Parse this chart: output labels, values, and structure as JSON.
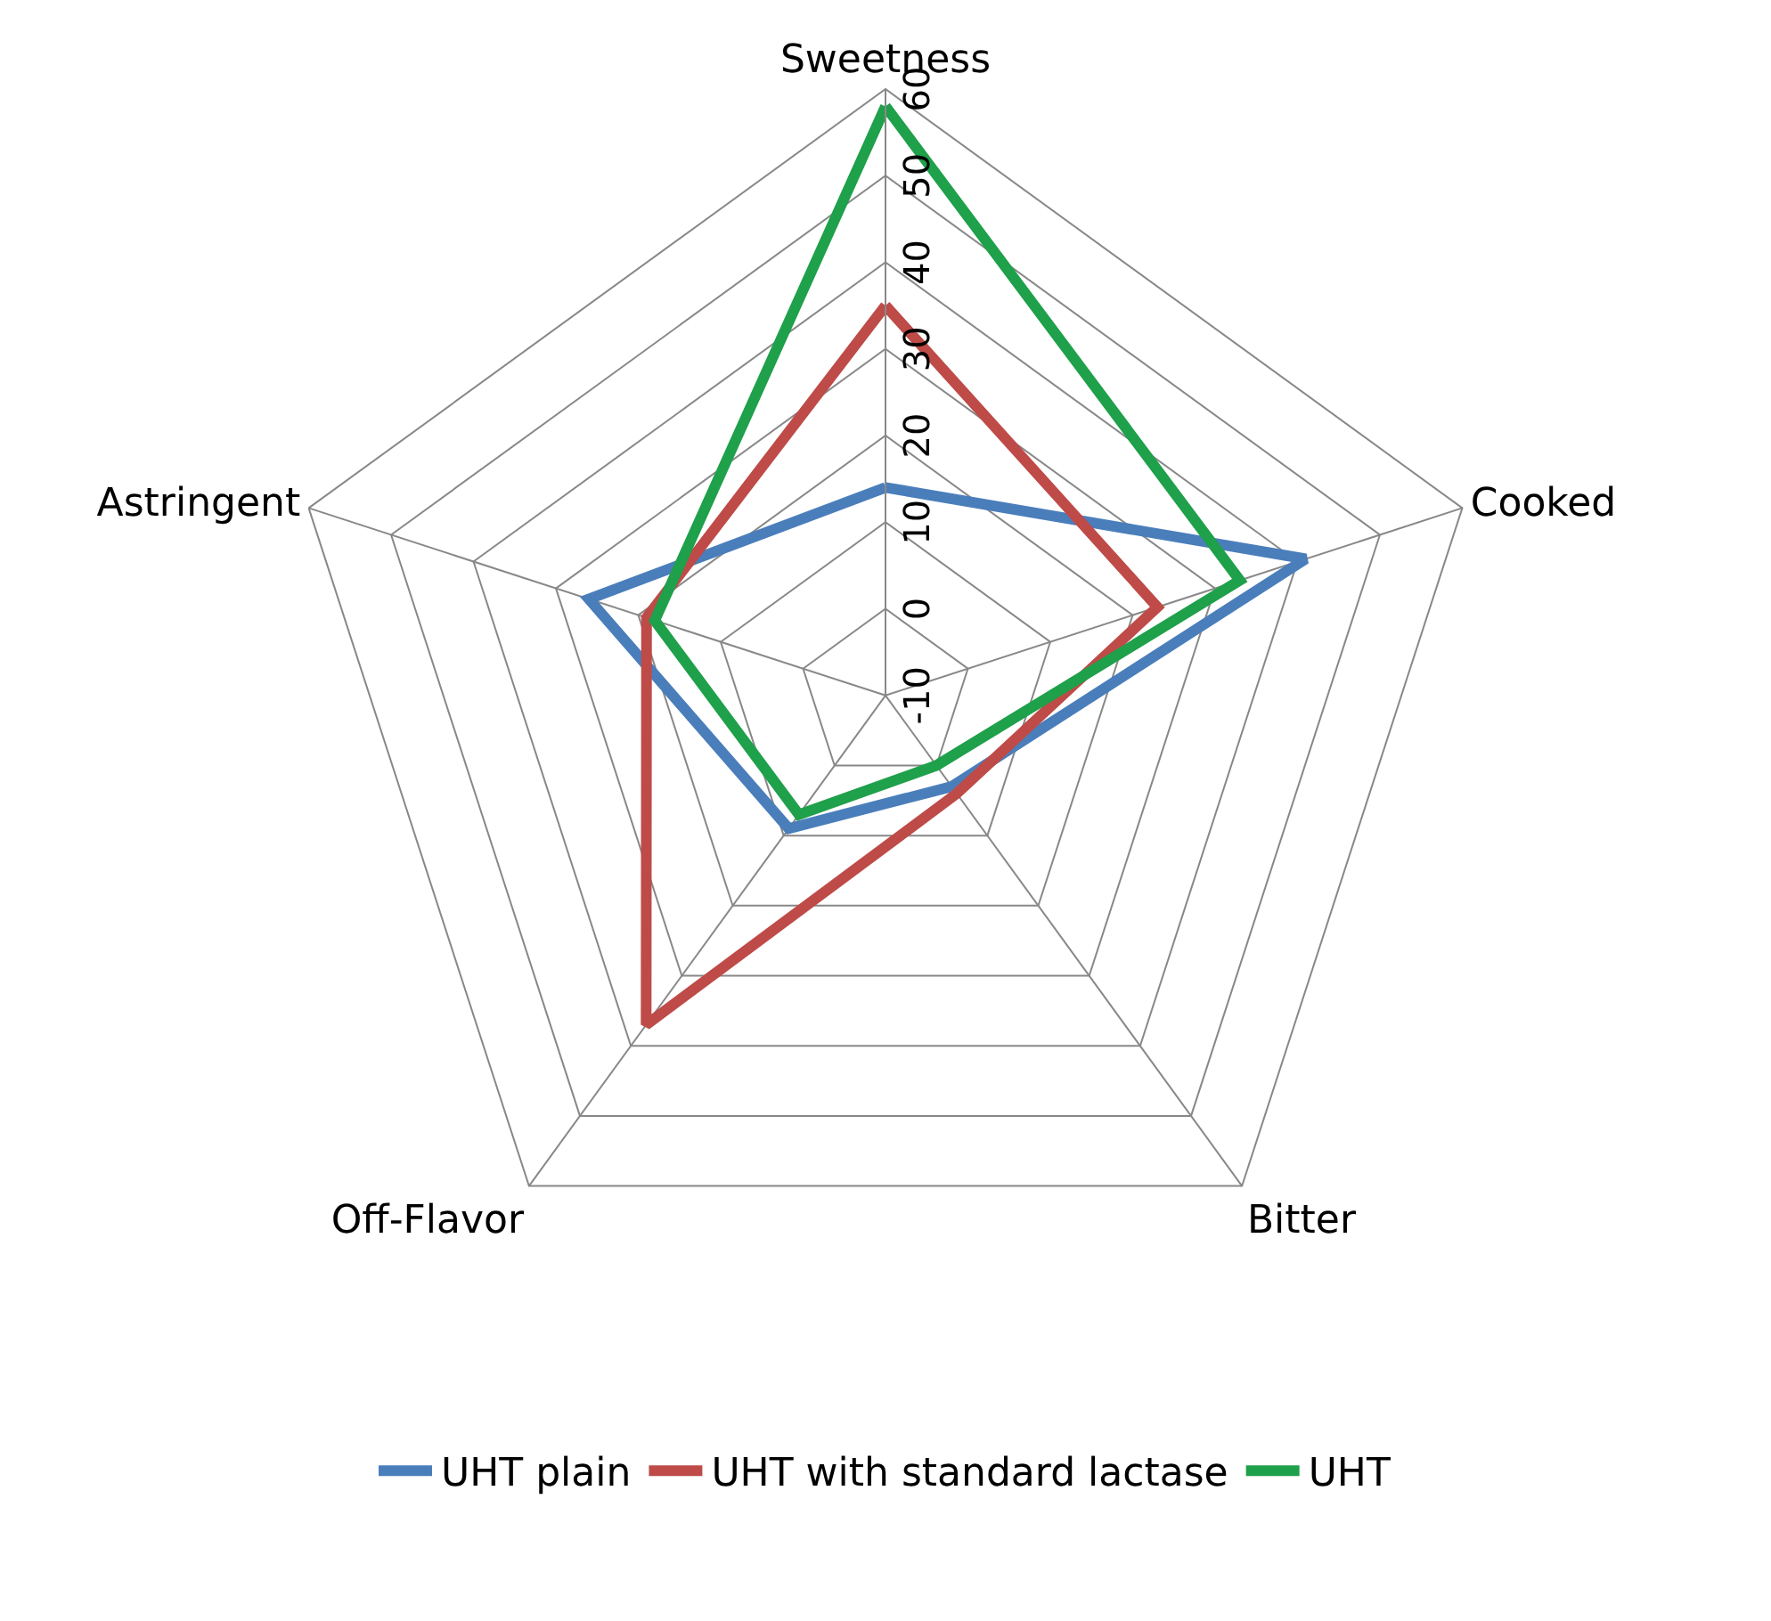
{
  "chart_data": {
    "type": "radar",
    "categories": [
      "Sweetness",
      "Cooked",
      "Bitter",
      "Off-Flavor",
      "Astringent"
    ],
    "ylim": [
      -10,
      60
    ],
    "yticks": [
      -10,
      0,
      10,
      20,
      30,
      40,
      50,
      60
    ],
    "legend": "bottom",
    "grid": true,
    "series": [
      {
        "name": "UHT plain",
        "color": "#4a7ebb",
        "values": [
          14,
          41,
          3,
          9,
          26
        ]
      },
      {
        "name": "UHT with standard lactase",
        "color": "#be4b48",
        "values": [
          35,
          23,
          4,
          37,
          19
        ]
      },
      {
        "name": "UHT",
        "color": "#1fa04a",
        "values": [
          58,
          33,
          0,
          7,
          18
        ]
      }
    ]
  }
}
